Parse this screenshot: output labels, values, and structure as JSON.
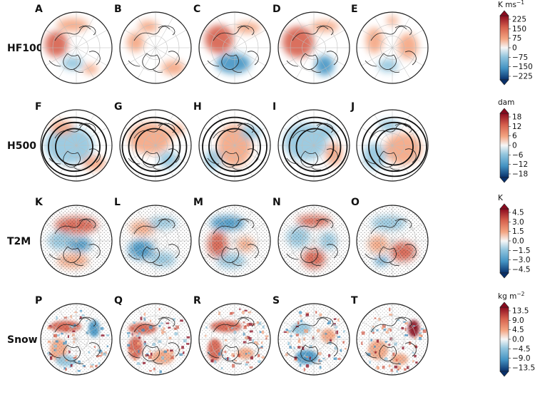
{
  "figure": {
    "rows": [
      {
        "label": "HF100",
        "panels": [
          "A",
          "B",
          "C",
          "D",
          "E"
        ],
        "colorbar": {
          "unit_base": "K ms",
          "unit_sup": "−1",
          "ticks": [
            "225",
            "150",
            "75",
            "0",
            "−75",
            "−150",
            "−225"
          ]
        },
        "style": "smooth"
      },
      {
        "label": "H500",
        "panels": [
          "F",
          "G",
          "H",
          "I",
          "J"
        ],
        "colorbar": {
          "unit_base": "dam",
          "unit_sup": "",
          "ticks": [
            "18",
            "12",
            "6",
            "0",
            "−6",
            "−12",
            "−18"
          ]
        },
        "style": "contours"
      },
      {
        "label": "T2M",
        "panels": [
          "K",
          "L",
          "M",
          "N",
          "O"
        ],
        "colorbar": {
          "unit_base": "K",
          "unit_sup": "",
          "ticks": [
            "4.5",
            "3.0",
            "1.5",
            "0.0",
            "−1.5",
            "−3.0",
            "−4.5"
          ]
        },
        "style": "stippled"
      },
      {
        "label": "Snow",
        "panels": [
          "P",
          "Q",
          "R",
          "S",
          "T"
        ],
        "colorbar": {
          "unit_base": "kg m",
          "unit_sup": "−2",
          "ticks": [
            "13.5",
            "9.0",
            "4.5",
            "0.0",
            "−4.5",
            "−9.0",
            "−13.5"
          ]
        },
        "style": "speckled"
      }
    ],
    "colors": {
      "red_dark": "#8b0a1f",
      "red": "#d6604d",
      "red_light": "#f4a582",
      "white": "#f7f7f7",
      "blue_light": "#92c5de",
      "blue": "#4393c3",
      "blue_dark": "#08306b"
    }
  }
}
